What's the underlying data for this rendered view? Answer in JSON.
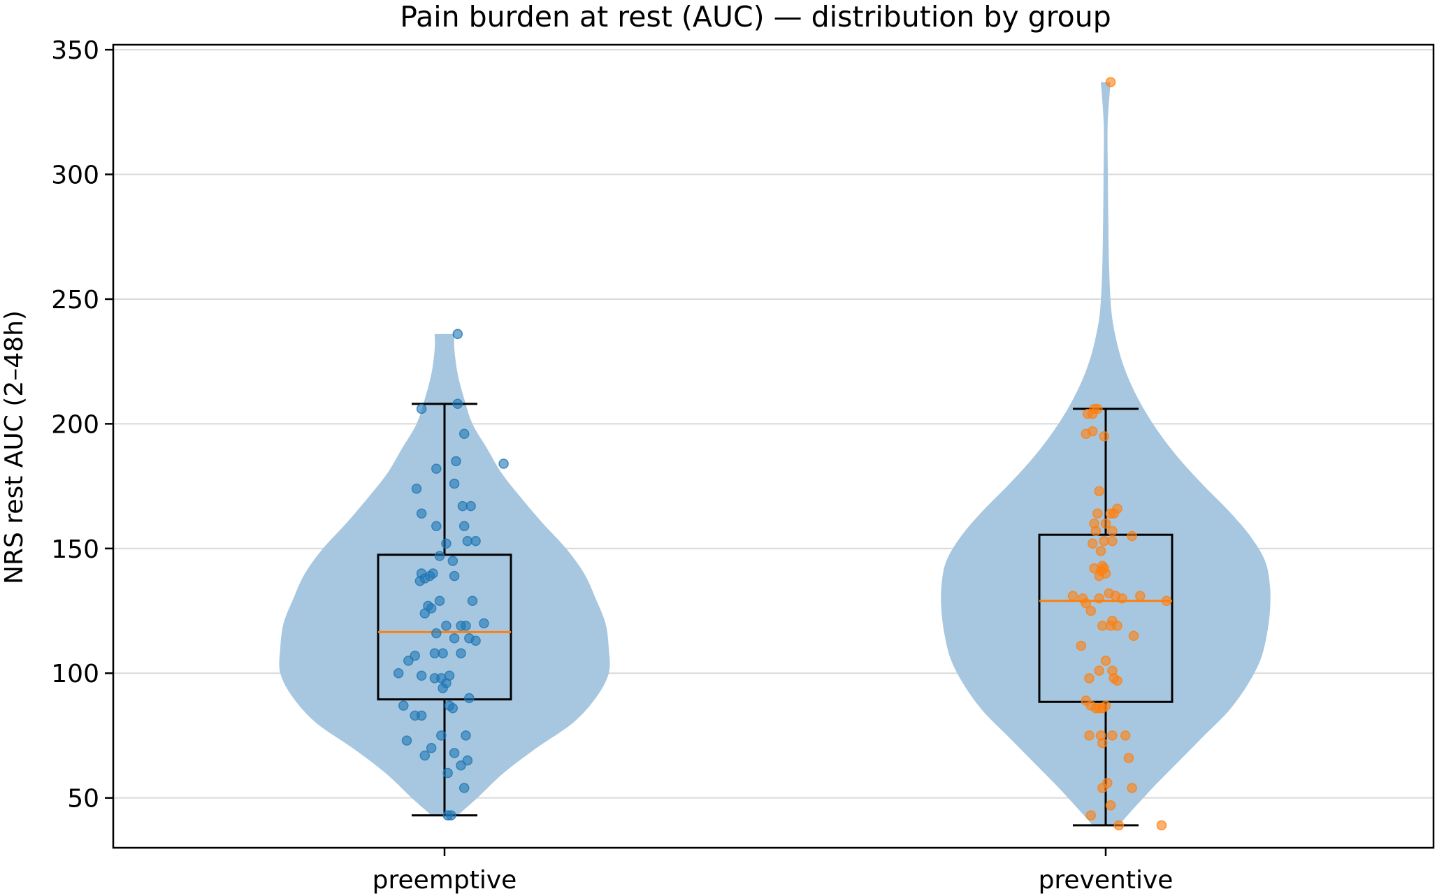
{
  "chart_data": {
    "type": "violin",
    "title": "Pain burden at rest (AUC) — distribution by group",
    "xlabel": "",
    "ylabel": "NRS rest AUC (2–48h)",
    "categories": [
      "preemptive",
      "preventive"
    ],
    "ylim": [
      30,
      352
    ],
    "yticks": [
      50,
      100,
      150,
      200,
      250,
      300,
      350
    ],
    "grid": "horizontal",
    "colors": {
      "violin": "#a7c7e0",
      "preemptive": "#1f77b4",
      "preventive": "#ff7f0e",
      "median": "#ff7f0e",
      "box": "#000000"
    },
    "groups": [
      {
        "name": "preemptive",
        "box": {
          "q1": 89.5,
          "median": 116.5,
          "q3": 147.5,
          "whisker_low": 43,
          "whisker_high": 208
        },
        "violin_range": [
          43,
          236
        ],
        "density": [
          [
            43,
            0.08
          ],
          [
            50,
            0.2
          ],
          [
            60,
            0.36
          ],
          [
            70,
            0.56
          ],
          [
            80,
            0.78
          ],
          [
            90,
            0.92
          ],
          [
            100,
            1.0
          ],
          [
            110,
            1.0
          ],
          [
            120,
            0.98
          ],
          [
            130,
            0.92
          ],
          [
            140,
            0.85
          ],
          [
            150,
            0.74
          ],
          [
            160,
            0.6
          ],
          [
            170,
            0.47
          ],
          [
            180,
            0.35
          ],
          [
            190,
            0.26
          ],
          [
            200,
            0.17
          ],
          [
            210,
            0.12
          ],
          [
            220,
            0.08
          ],
          [
            230,
            0.06
          ],
          [
            236,
            0.06
          ]
        ],
        "points": [
          {
            "x": 0.08,
            "y": 236
          },
          {
            "x": -0.14,
            "y": 206
          },
          {
            "x": 0.08,
            "y": 208
          },
          {
            "x": 0.12,
            "y": 196
          },
          {
            "x": 0.36,
            "y": 184
          },
          {
            "x": -0.05,
            "y": 182
          },
          {
            "x": 0.07,
            "y": 185
          },
          {
            "x": -0.17,
            "y": 174
          },
          {
            "x": 0.06,
            "y": 176
          },
          {
            "x": -0.14,
            "y": 164
          },
          {
            "x": 0.11,
            "y": 167
          },
          {
            "x": 0.16,
            "y": 167
          },
          {
            "x": -0.05,
            "y": 159
          },
          {
            "x": 0.12,
            "y": 159
          },
          {
            "x": 0.01,
            "y": 152
          },
          {
            "x": 0.14,
            "y": 153
          },
          {
            "x": 0.19,
            "y": 153
          },
          {
            "x": 0.05,
            "y": 145
          },
          {
            "x": -0.03,
            "y": 147
          },
          {
            "x": -0.14,
            "y": 140
          },
          {
            "x": -0.07,
            "y": 140
          },
          {
            "x": -0.09,
            "y": 139
          },
          {
            "x": -0.12,
            "y": 138
          },
          {
            "x": -0.15,
            "y": 137
          },
          {
            "x": 0.06,
            "y": 139
          },
          {
            "x": -0.03,
            "y": 129
          },
          {
            "x": 0.17,
            "y": 129
          },
          {
            "x": -0.1,
            "y": 127
          },
          {
            "x": -0.08,
            "y": 126
          },
          {
            "x": -0.12,
            "y": 124
          },
          {
            "x": 0.01,
            "y": 119
          },
          {
            "x": 0.1,
            "y": 119
          },
          {
            "x": 0.13,
            "y": 119
          },
          {
            "x": 0.24,
            "y": 120
          },
          {
            "x": -0.05,
            "y": 116
          },
          {
            "x": 0.06,
            "y": 114
          },
          {
            "x": 0.15,
            "y": 114
          },
          {
            "x": 0.19,
            "y": 113
          },
          {
            "x": -0.06,
            "y": 108
          },
          {
            "x": -0.01,
            "y": 108
          },
          {
            "x": 0.1,
            "y": 108
          },
          {
            "x": -0.22,
            "y": 105
          },
          {
            "x": -0.18,
            "y": 107
          },
          {
            "x": -0.28,
            "y": 100
          },
          {
            "x": -0.14,
            "y": 99
          },
          {
            "x": -0.06,
            "y": 98
          },
          {
            "x": -0.02,
            "y": 98
          },
          {
            "x": 0.03,
            "y": 99
          },
          {
            "x": -0.01,
            "y": 94
          },
          {
            "x": 0.01,
            "y": 96
          },
          {
            "x": 0.15,
            "y": 90
          },
          {
            "x": 0.03,
            "y": 87
          },
          {
            "x": 0.05,
            "y": 86
          },
          {
            "x": -0.25,
            "y": 87
          },
          {
            "x": -0.18,
            "y": 83
          },
          {
            "x": -0.14,
            "y": 83
          },
          {
            "x": -0.02,
            "y": 75
          },
          {
            "x": 0.13,
            "y": 75
          },
          {
            "x": -0.23,
            "y": 73
          },
          {
            "x": -0.08,
            "y": 70
          },
          {
            "x": -0.12,
            "y": 67
          },
          {
            "x": 0.06,
            "y": 68
          },
          {
            "x": 0.1,
            "y": 63
          },
          {
            "x": 0.14,
            "y": 65
          },
          {
            "x": 0.02,
            "y": 60
          },
          {
            "x": 0.12,
            "y": 54
          },
          {
            "x": 0.02,
            "y": 43
          },
          {
            "x": 0.04,
            "y": 43
          }
        ]
      },
      {
        "name": "preventive",
        "box": {
          "q1": 88.5,
          "median": 129,
          "q3": 155.5,
          "whisker_low": 39,
          "whisker_high": 206
        },
        "violin_range": [
          39,
          337
        ],
        "density": [
          [
            39,
            0.08
          ],
          [
            45,
            0.16
          ],
          [
            55,
            0.3
          ],
          [
            65,
            0.45
          ],
          [
            75,
            0.6
          ],
          [
            85,
            0.75
          ],
          [
            95,
            0.86
          ],
          [
            105,
            0.94
          ],
          [
            115,
            0.98
          ],
          [
            125,
            1.0
          ],
          [
            135,
            1.0
          ],
          [
            145,
            0.97
          ],
          [
            155,
            0.88
          ],
          [
            165,
            0.75
          ],
          [
            175,
            0.6
          ],
          [
            185,
            0.46
          ],
          [
            195,
            0.34
          ],
          [
            205,
            0.24
          ],
          [
            215,
            0.16
          ],
          [
            225,
            0.1
          ],
          [
            235,
            0.06
          ],
          [
            245,
            0.035
          ],
          [
            260,
            0.022
          ],
          [
            280,
            0.016
          ],
          [
            300,
            0.013
          ],
          [
            320,
            0.012
          ],
          [
            337,
            0.03
          ]
        ],
        "points": [
          {
            "x": 0.03,
            "y": 337
          },
          {
            "x": -0.05,
            "y": 206
          },
          {
            "x": -0.11,
            "y": 204
          },
          {
            "x": -0.08,
            "y": 204
          },
          {
            "x": -0.07,
            "y": 206
          },
          {
            "x": -0.12,
            "y": 196
          },
          {
            "x": -0.08,
            "y": 197
          },
          {
            "x": -0.01,
            "y": 195
          },
          {
            "x": -0.04,
            "y": 173
          },
          {
            "x": 0.03,
            "y": 164
          },
          {
            "x": 0.05,
            "y": 164
          },
          {
            "x": 0.07,
            "y": 166
          },
          {
            "x": -0.05,
            "y": 164
          },
          {
            "x": -0.07,
            "y": 160
          },
          {
            "x": 0.0,
            "y": 160
          },
          {
            "x": 0.16,
            "y": 155
          },
          {
            "x": 0.04,
            "y": 157
          },
          {
            "x": -0.06,
            "y": 157
          },
          {
            "x": -0.01,
            "y": 153
          },
          {
            "x": 0.04,
            "y": 153
          },
          {
            "x": -0.08,
            "y": 152
          },
          {
            "x": -0.03,
            "y": 149
          },
          {
            "x": -0.02,
            "y": 143
          },
          {
            "x": -0.03,
            "y": 141
          },
          {
            "x": -0.01,
            "y": 142
          },
          {
            "x": 0.0,
            "y": 140
          },
          {
            "x": -0.07,
            "y": 142
          },
          {
            "x": -0.04,
            "y": 139
          },
          {
            "x": -0.2,
            "y": 131
          },
          {
            "x": -0.14,
            "y": 130
          },
          {
            "x": -0.04,
            "y": 130
          },
          {
            "x": 0.02,
            "y": 132
          },
          {
            "x": 0.06,
            "y": 131
          },
          {
            "x": 0.1,
            "y": 130
          },
          {
            "x": 0.21,
            "y": 131
          },
          {
            "x": 0.37,
            "y": 129
          },
          {
            "x": -0.12,
            "y": 128
          },
          {
            "x": -0.09,
            "y": 125
          },
          {
            "x": 0.04,
            "y": 121
          },
          {
            "x": 0.03,
            "y": 119
          },
          {
            "x": 0.07,
            "y": 119
          },
          {
            "x": -0.02,
            "y": 119
          },
          {
            "x": 0.17,
            "y": 115
          },
          {
            "x": -0.15,
            "y": 111
          },
          {
            "x": 0.0,
            "y": 105
          },
          {
            "x": -0.04,
            "y": 101
          },
          {
            "x": 0.04,
            "y": 101
          },
          {
            "x": 0.05,
            "y": 98
          },
          {
            "x": -0.1,
            "y": 98
          },
          {
            "x": 0.07,
            "y": 97
          },
          {
            "x": -0.12,
            "y": 89
          },
          {
            "x": -0.09,
            "y": 87
          },
          {
            "x": -0.06,
            "y": 86
          },
          {
            "x": -0.04,
            "y": 86
          },
          {
            "x": -0.02,
            "y": 86
          },
          {
            "x": 0.0,
            "y": 87
          },
          {
            "x": -0.1,
            "y": 75
          },
          {
            "x": -0.03,
            "y": 75
          },
          {
            "x": 0.04,
            "y": 75
          },
          {
            "x": 0.12,
            "y": 75
          },
          {
            "x": -0.02,
            "y": 72
          },
          {
            "x": 0.14,
            "y": 66
          },
          {
            "x": 0.01,
            "y": 56
          },
          {
            "x": 0.16,
            "y": 54
          },
          {
            "x": -0.02,
            "y": 54
          },
          {
            "x": -0.09,
            "y": 43
          },
          {
            "x": 0.03,
            "y": 47
          },
          {
            "x": 0.08,
            "y": 39
          },
          {
            "x": 0.34,
            "y": 39
          }
        ]
      }
    ]
  }
}
